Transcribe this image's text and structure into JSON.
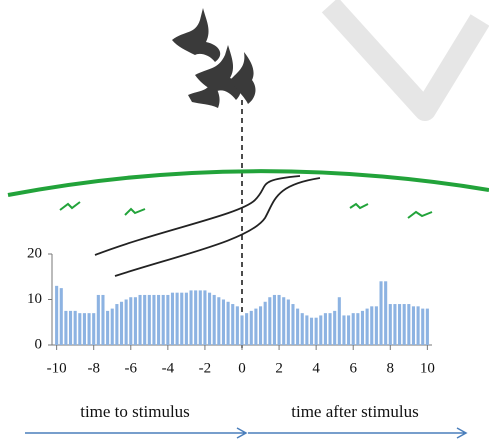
{
  "chart_data": {
    "type": "bar",
    "x": [
      -10,
      -9.75,
      -9.5,
      -9.25,
      -9,
      -8.75,
      -8.5,
      -8.25,
      -8,
      -7.75,
      -7.5,
      -7.25,
      -7,
      -6.75,
      -6.5,
      -6.25,
      -6,
      -5.75,
      -5.5,
      -5.25,
      -5,
      -4.75,
      -4.5,
      -4.25,
      -4,
      -3.75,
      -3.5,
      -3.25,
      -3,
      -2.75,
      -2.5,
      -2.25,
      -2,
      -1.75,
      -1.5,
      -1.25,
      -1,
      -0.75,
      -0.5,
      -0.25,
      0,
      0.25,
      0.5,
      0.75,
      1,
      1.25,
      1.5,
      1.75,
      2,
      2.25,
      2.5,
      2.75,
      3,
      3.25,
      3.5,
      3.75,
      4,
      4.25,
      4.5,
      4.75,
      5,
      5.25,
      5.5,
      5.75,
      6,
      6.25,
      6.5,
      6.75,
      7,
      7.25,
      7.5,
      7.75,
      8,
      8.25,
      8.5,
      8.75,
      9,
      9.25,
      9.5,
      9.75,
      10
    ],
    "values": [
      13,
      12.5,
      7.5,
      7.5,
      7.5,
      7,
      7,
      7,
      7,
      11,
      11,
      7.5,
      8,
      9,
      9.5,
      10,
      10.5,
      10.5,
      11,
      11,
      11,
      11,
      11,
      11,
      11,
      11.5,
      11.5,
      11.5,
      11.5,
      12,
      12,
      12,
      12,
      11.5,
      11,
      10.5,
      10,
      9.5,
      9,
      8.5,
      6.5,
      7,
      7.5,
      8,
      8.5,
      9.5,
      10.5,
      11,
      11,
      10.5,
      10,
      9,
      8,
      7,
      6.5,
      6,
      6,
      6.5,
      7,
      7,
      7.5,
      10.5,
      6.5,
      6.5,
      7,
      7,
      7.5,
      8,
      8.5,
      8.5,
      14,
      14,
      9,
      9,
      9,
      9,
      9,
      8.5,
      8.5,
      8,
      8
    ],
    "color": "#8db3e2",
    "xlim": [
      -10.25,
      10.25
    ],
    "xticks": [
      -10,
      -8,
      -6,
      -4,
      -2,
      0,
      2,
      4,
      6,
      8,
      10
    ],
    "ylim": [
      0,
      20
    ],
    "yticks": [
      0,
      10,
      20
    ],
    "annotations": [
      "time to stimulus",
      "time after stimulus"
    ]
  }
}
